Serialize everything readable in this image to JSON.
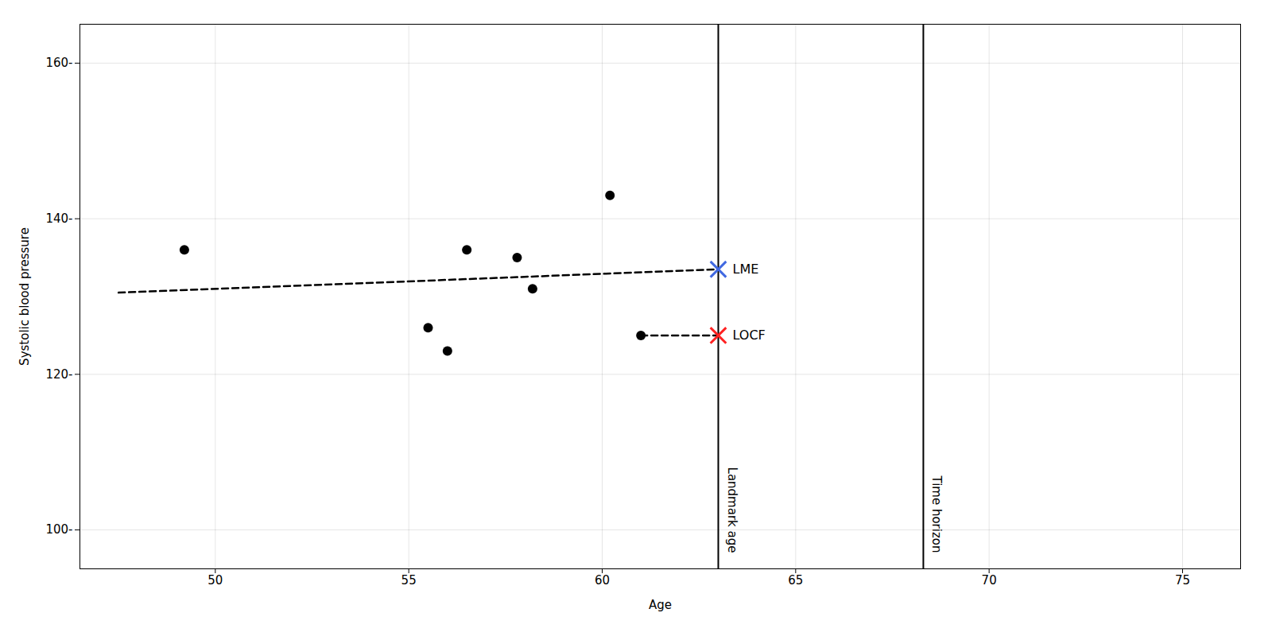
{
  "chart_data": {
    "type": "scatter",
    "xlabel": "Age",
    "ylabel": "Systolic blood pressure",
    "x": [
      49.2,
      55.5,
      56.0,
      56.5,
      57.8,
      58.2,
      60.2,
      61.0
    ],
    "values": [
      136,
      126,
      123,
      136,
      135,
      131,
      143,
      125
    ],
    "color": "#000000",
    "lines": [
      {
        "x": [
          47.5,
          63.0
        ],
        "values": [
          130.5,
          133.5
        ],
        "color": "#000000",
        "line_style": "dashed"
      },
      {
        "x": [
          61.0,
          63.0
        ],
        "values": [
          125.0,
          125.0
        ],
        "color": "#000000",
        "line_style": "dashed"
      }
    ],
    "points": [
      {
        "x": 63.0,
        "value": 133.5,
        "label": "LME",
        "color": "#4169E1",
        "marker": "x"
      },
      {
        "x": 63.0,
        "value": 125.0,
        "label": "LOCF",
        "color": "#FF2222",
        "marker": "x"
      }
    ],
    "vertical_lines": [
      {
        "x": 63.0,
        "label": "Landmark age",
        "color": "#000000"
      },
      {
        "x": 68.3,
        "label": "Time horizon",
        "color": "#000000"
      }
    ],
    "xlim": [
      46.5,
      76.5
    ],
    "ylim": [
      95,
      165
    ],
    "xticks": [
      50,
      55,
      60,
      65,
      70,
      75
    ],
    "yticks": [
      {
        "value": 100,
        "label": "100-"
      },
      {
        "value": 120,
        "label": "120-"
      },
      {
        "value": 140,
        "label": "140-"
      },
      {
        "value": 160,
        "label": "160-"
      }
    ],
    "grid": true
  }
}
